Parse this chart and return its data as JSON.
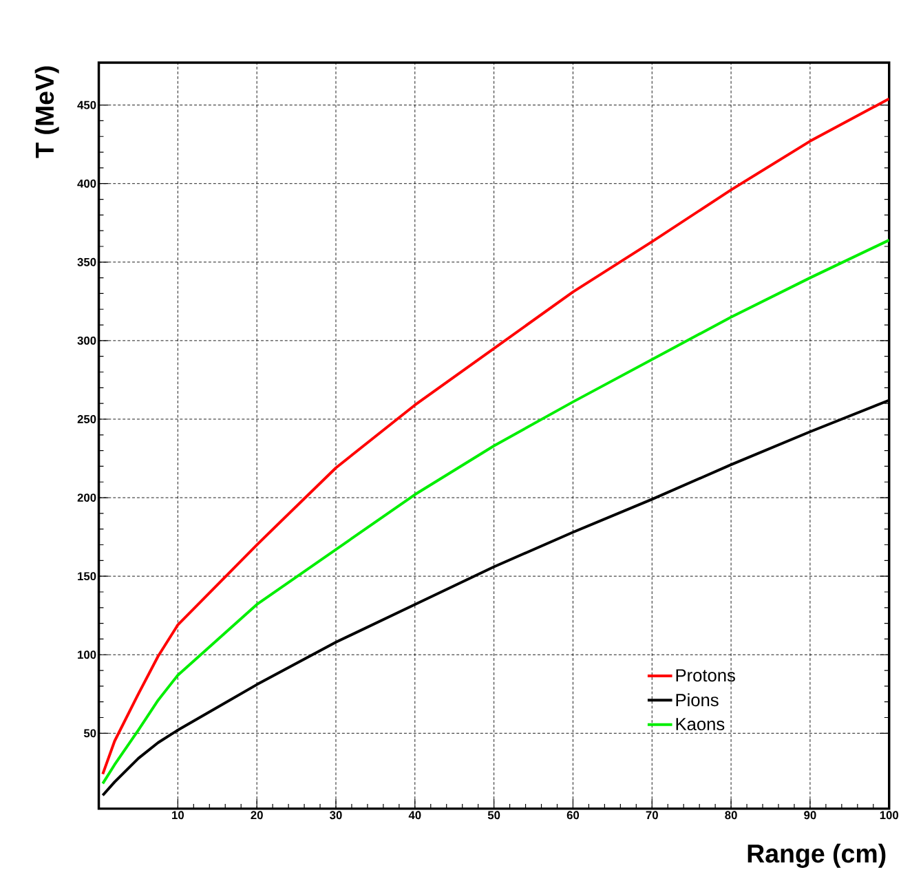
{
  "chart_data": {
    "type": "line",
    "xlabel": "Range (cm)",
    "ylabel": "T (MeV)",
    "xlim": [
      0,
      100
    ],
    "ylim": [
      2,
      477
    ],
    "xticks": [
      10,
      20,
      30,
      40,
      50,
      60,
      70,
      80,
      90,
      100
    ],
    "yticks": [
      50,
      100,
      150,
      200,
      250,
      300,
      350,
      400,
      450
    ],
    "grid": true,
    "legend": "bottom right",
    "marker": "none",
    "line_style": "solid",
    "x": [
      0.5,
      2,
      5,
      7.5,
      10,
      20,
      30,
      40,
      50,
      60,
      70,
      80,
      90,
      100
    ],
    "series": [
      {
        "name": "Protons",
        "color": "#ff0000",
        "values": [
          24,
          45,
          75,
          99,
          119,
          170,
          219,
          259,
          295,
          331,
          363,
          396,
          427,
          454
        ]
      },
      {
        "name": "Pions",
        "color": "#000000",
        "values": [
          10.5,
          19,
          34,
          44,
          52,
          81,
          108,
          132,
          156,
          178,
          199,
          221,
          242,
          262
        ]
      },
      {
        "name": "Kaons",
        "color": "#00ee00",
        "values": [
          18,
          30,
          52,
          71,
          87,
          132,
          167,
          202,
          233,
          261,
          288,
          315,
          340,
          364
        ]
      }
    ]
  }
}
